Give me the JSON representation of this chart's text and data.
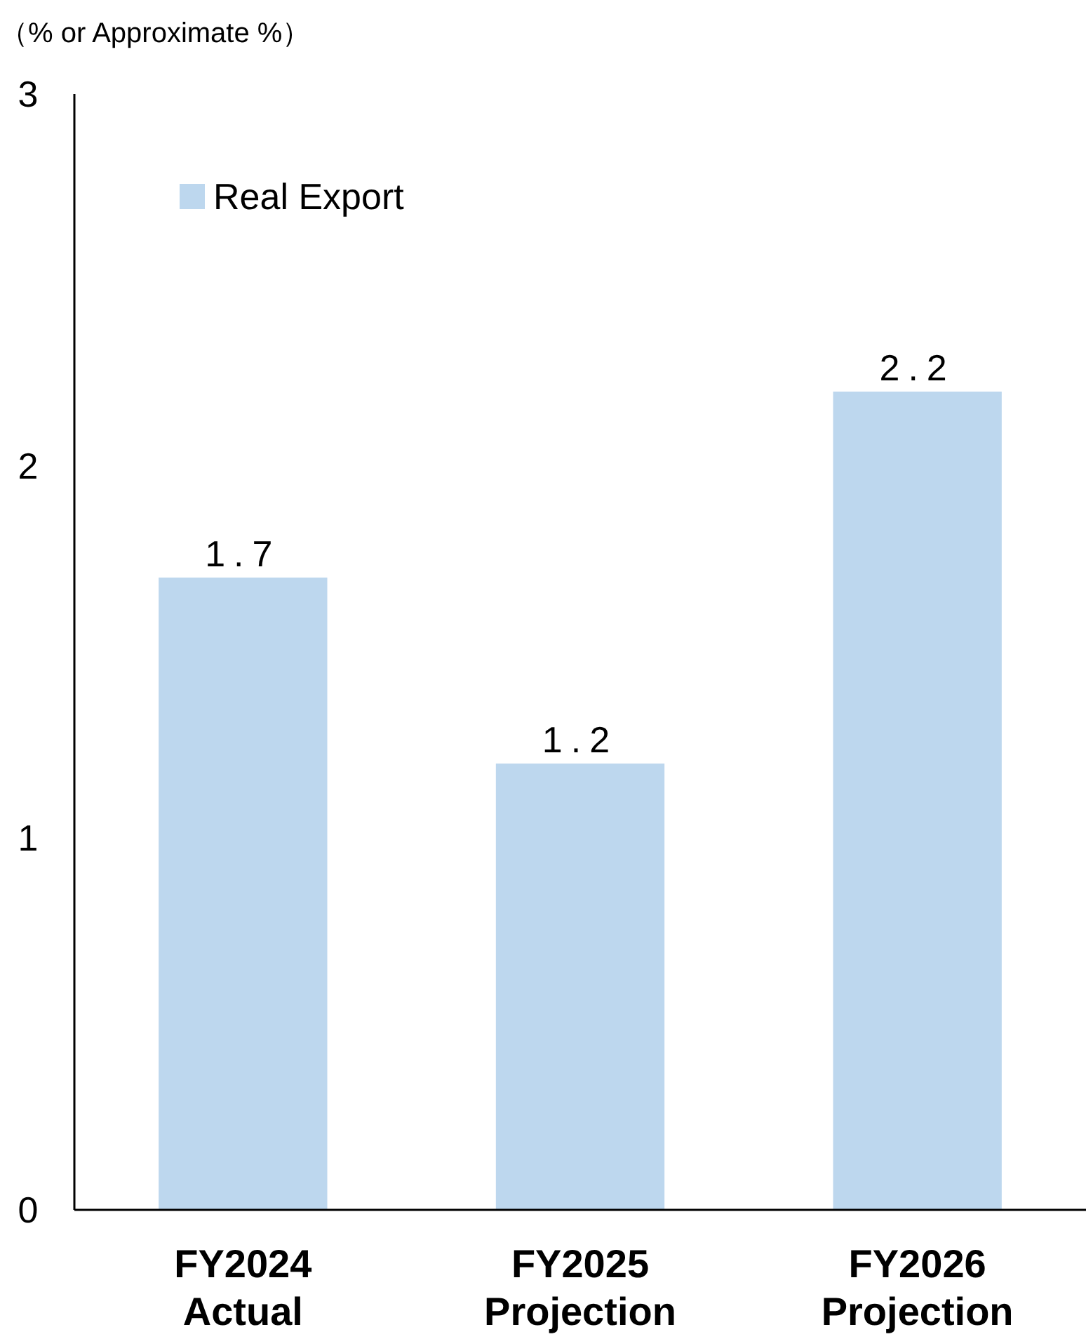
{
  "chart_data": {
    "type": "bar",
    "ylabel": "（% or Approximate %）",
    "categories": [
      "FY2024\nActual",
      "FY2025\nProjection",
      "FY2026\nProjection"
    ],
    "series": [
      {
        "name": "Real Export",
        "color": "#bdd7ee",
        "values": [
          1.7,
          1.2,
          2.2
        ]
      }
    ],
    "ylim": [
      0,
      3
    ],
    "yticks": [
      0,
      1,
      2,
      3
    ],
    "grid": false,
    "legend": "top left",
    "data_labels": true
  }
}
